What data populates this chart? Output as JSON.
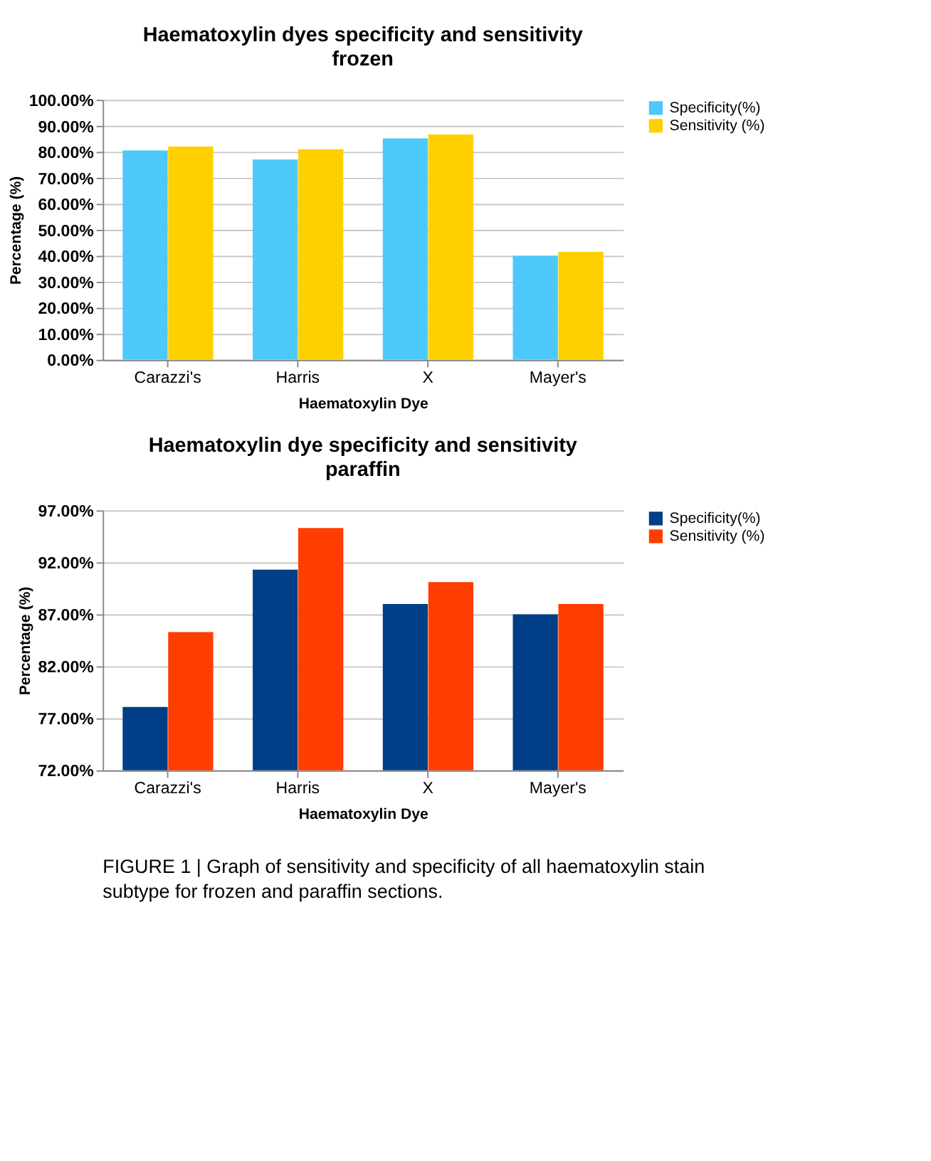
{
  "chart_data": [
    {
      "type": "bar",
      "title": "Haematoxylin  dyes specificity  and sensitivity",
      "subtitle": "frozen",
      "xlabel": "Haematoxylin Dye",
      "ylabel": "Percentage (%)",
      "categories": [
        "Carazzi's",
        "Harris",
        "X",
        "Mayer's"
      ],
      "series": [
        {
          "name": "Specificity(%)",
          "color": "#4dc8fa",
          "values": [
            80.5,
            77,
            85.2,
            40
          ]
        },
        {
          "name": "Sensitivity (%)",
          "color": "#ffd000",
          "values": [
            82,
            81,
            86.7,
            41.5
          ]
        }
      ],
      "ylim": [
        0,
        100
      ],
      "yticks": [
        {
          "value": 0,
          "label": "0.00%"
        },
        {
          "value": 10,
          "label": "10.00%"
        },
        {
          "value": 20,
          "label": "20.00%"
        },
        {
          "value": 30,
          "label": "30.00%"
        },
        {
          "value": 40,
          "label": "40.00%"
        },
        {
          "value": 50,
          "label": "50.00%"
        },
        {
          "value": 60,
          "label": "60.00%"
        },
        {
          "value": 70,
          "label": "70.00%"
        },
        {
          "value": 80,
          "label": "80.00%"
        },
        {
          "value": 90,
          "label": "90.00%"
        },
        {
          "value": 100,
          "label": "100.00%"
        }
      ],
      "grid": "y",
      "legend": "right"
    },
    {
      "type": "bar",
      "title": "Haematoxylin  dye specificity  and sensitivity",
      "subtitle": "paraffin",
      "xlabel": "Haematoxylin Dye",
      "ylabel": "Percentage (%)",
      "categories": [
        "Carazzi's",
        "Harris",
        "X",
        "Mayer's"
      ],
      "series": [
        {
          "name": "Specificity(%)",
          "color": "#003f87",
          "values": [
            78.1,
            91.3,
            88,
            87
          ]
        },
        {
          "name": "Sensitivity (%)",
          "color": "#ff3d00",
          "values": [
            85.3,
            95.3,
            90.1,
            88
          ]
        }
      ],
      "ylim": [
        72,
        97
      ],
      "yticks": [
        {
          "value": 72,
          "label": "72.00%"
        },
        {
          "value": 77,
          "label": "77.00%"
        },
        {
          "value": 82,
          "label": "82.00%"
        },
        {
          "value": 87,
          "label": "87.00%"
        },
        {
          "value": 92,
          "label": "92.00%"
        },
        {
          "value": 97,
          "label": "97.00%"
        }
      ],
      "grid": "y",
      "legend": "right",
      "annotations": [
        "FIGURE 1 | Graph of sensitivity and specificity of all haematoxylin stain subtype for frozen and paraffin sections."
      ]
    }
  ]
}
